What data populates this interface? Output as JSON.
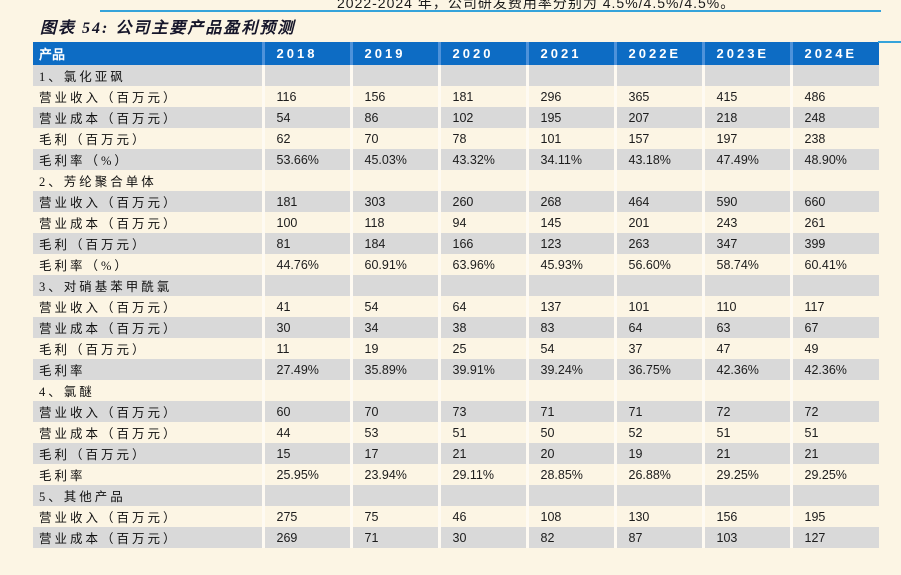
{
  "page": {
    "top_text": "2022-2024 年，公司研发费用率分别为 4.5%/4.5%/4.5%。",
    "title": "图表 54: 公司主要产品盈利预测"
  },
  "colors": {
    "page_bg": "#fcf5e4",
    "header_bg": "#0d6cc4",
    "header_text": "#ffffff",
    "row_gray": "#d9d9d9",
    "row_cream": "#fcf5e4",
    "rule_blue": "#35a3da",
    "title_text": "#16162a",
    "body_text": "#1c1c1c"
  },
  "table": {
    "columns": [
      "产品",
      "2018",
      "2019",
      "2020",
      "2021",
      "2022E",
      "2023E",
      "2024E"
    ],
    "rows": [
      {
        "kind": "group",
        "label": "1、氯化亚砜",
        "values": [
          "",
          "",
          "",
          "",
          "",
          "",
          ""
        ]
      },
      {
        "kind": "data",
        "label": "营业收入（百万元）",
        "values": [
          "116",
          "156",
          "181",
          "296",
          "365",
          "415",
          "486"
        ]
      },
      {
        "kind": "data",
        "label": "营业成本（百万元）",
        "values": [
          "54",
          "86",
          "102",
          "195",
          "207",
          "218",
          "248"
        ]
      },
      {
        "kind": "data",
        "label": "毛利（百万元）",
        "values": [
          "62",
          "70",
          "78",
          "101",
          "157",
          "197",
          "238"
        ]
      },
      {
        "kind": "data",
        "label": "毛利率（%）",
        "values": [
          "53.66%",
          "45.03%",
          "43.32%",
          "34.11%",
          "43.18%",
          "47.49%",
          "48.90%"
        ]
      },
      {
        "kind": "group",
        "label": "2、芳纶聚合单体",
        "values": [
          "",
          "",
          "",
          "",
          "",
          "",
          ""
        ]
      },
      {
        "kind": "data",
        "label": "营业收入（百万元）",
        "values": [
          "181",
          "303",
          "260",
          "268",
          "464",
          "590",
          "660"
        ]
      },
      {
        "kind": "data",
        "label": "营业成本（百万元）",
        "values": [
          "100",
          "118",
          "94",
          "145",
          "201",
          "243",
          "261"
        ]
      },
      {
        "kind": "data",
        "label": "毛利（百万元）",
        "values": [
          "81",
          "184",
          "166",
          "123",
          "263",
          "347",
          "399"
        ]
      },
      {
        "kind": "data",
        "label": "毛利率（%）",
        "values": [
          "44.76%",
          "60.91%",
          "63.96%",
          "45.93%",
          "56.60%",
          "58.74%",
          "60.41%"
        ]
      },
      {
        "kind": "group",
        "label": "3、对硝基苯甲酰氯",
        "values": [
          "",
          "",
          "",
          "",
          "",
          "",
          ""
        ]
      },
      {
        "kind": "data",
        "label": "营业收入（百万元）",
        "values": [
          "41",
          "54",
          "64",
          "137",
          "101",
          "110",
          "117"
        ]
      },
      {
        "kind": "data",
        "label": "营业成本（百万元）",
        "values": [
          "30",
          "34",
          "38",
          "83",
          "64",
          "63",
          "67"
        ]
      },
      {
        "kind": "data",
        "label": "毛利（百万元）",
        "values": [
          "11",
          "19",
          "25",
          "54",
          "37",
          "47",
          "49"
        ]
      },
      {
        "kind": "data",
        "label": "毛利率",
        "values": [
          "27.49%",
          "35.89%",
          "39.91%",
          "39.24%",
          "36.75%",
          "42.36%",
          "42.36%"
        ]
      },
      {
        "kind": "group",
        "label": "4、氯醚",
        "values": [
          "",
          "",
          "",
          "",
          "",
          "",
          ""
        ]
      },
      {
        "kind": "data",
        "label": "营业收入（百万元）",
        "values": [
          "60",
          "70",
          "73",
          "71",
          "71",
          "72",
          "72"
        ]
      },
      {
        "kind": "data",
        "label": "营业成本（百万元）",
        "values": [
          "44",
          "53",
          "51",
          "50",
          "52",
          "51",
          "51"
        ]
      },
      {
        "kind": "data",
        "label": "毛利（百万元）",
        "values": [
          "15",
          "17",
          "21",
          "20",
          "19",
          "21",
          "21"
        ]
      },
      {
        "kind": "data",
        "label": "毛利率",
        "values": [
          "25.95%",
          "23.94%",
          "29.11%",
          "28.85%",
          "26.88%",
          "29.25%",
          "29.25%"
        ]
      },
      {
        "kind": "group",
        "label": "5、其他产品",
        "values": [
          "",
          "",
          "",
          "",
          "",
          "",
          ""
        ]
      },
      {
        "kind": "data",
        "label": "营业收入（百万元）",
        "values": [
          "275",
          "75",
          "46",
          "108",
          "130",
          "156",
          "195"
        ]
      },
      {
        "kind": "data",
        "label": "营业成本（百万元）",
        "values": [
          "269",
          "71",
          "30",
          "82",
          "87",
          "103",
          "127"
        ]
      }
    ]
  }
}
